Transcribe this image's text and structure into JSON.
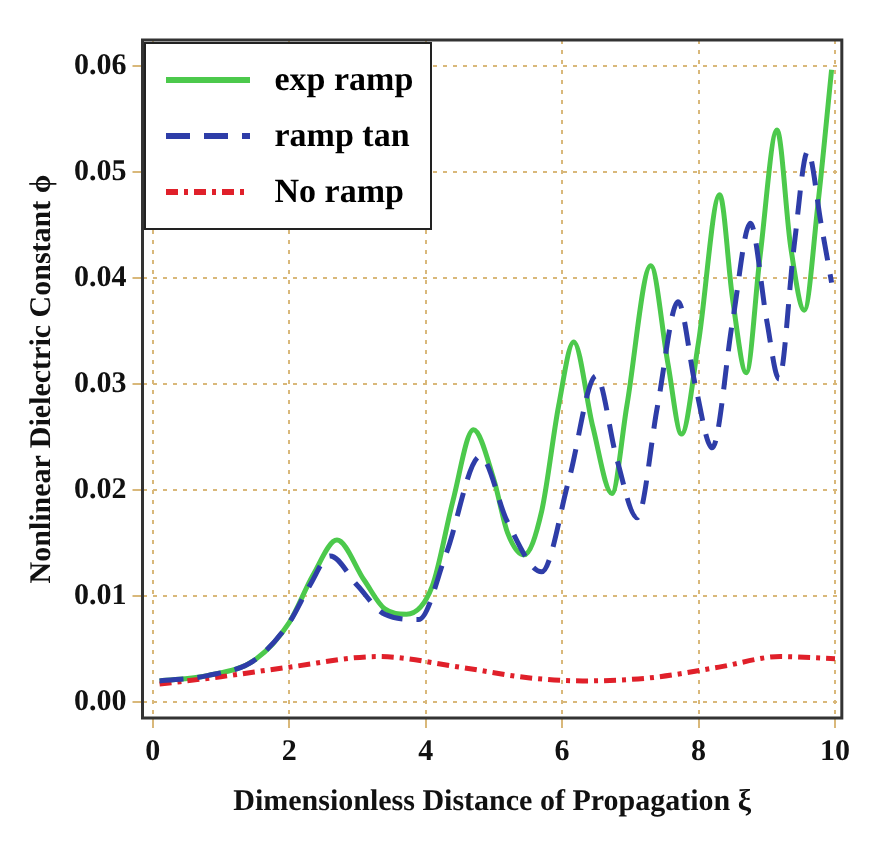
{
  "chart_data": {
    "type": "line",
    "xlabel": "Dimensionless Distance of Propagation ξ",
    "ylabel": "Nonlinear Dielectric Constant ϕ",
    "xlim": [
      -0.15,
      10.1
    ],
    "ylim": [
      -0.0015,
      0.0625
    ],
    "xticks": [
      0,
      2,
      4,
      6,
      8,
      10
    ],
    "yticks": [
      {
        "value": 0,
        "label": "0.00"
      },
      {
        "value": 0.01,
        "label": "0.01"
      },
      {
        "value": 0.02,
        "label": "0.02"
      },
      {
        "value": 0.03,
        "label": "0.03"
      },
      {
        "value": 0.04,
        "label": "0.04"
      },
      {
        "value": 0.05,
        "label": "0.05"
      },
      {
        "value": 0.06,
        "label": "0.06"
      }
    ],
    "grid": true,
    "legend": "top left",
    "marker": "none",
    "series": [
      {
        "name": "exp ramp",
        "color": "#4cc94c",
        "line_style": "solid",
        "x": [
          0.1,
          0.8,
          1.5,
          2.0,
          2.35,
          2.7,
          3.1,
          3.4,
          3.72,
          4.1,
          4.4,
          4.7,
          5.0,
          5.2,
          5.44,
          5.7,
          5.95,
          6.17,
          6.45,
          6.73,
          6.95,
          7.3,
          7.55,
          7.75,
          8.0,
          8.31,
          8.5,
          8.7,
          8.9,
          9.15,
          9.35,
          9.55,
          9.75,
          9.95
        ],
        "values": [
          0.002,
          0.0025,
          0.004,
          0.0075,
          0.012,
          0.0153,
          0.0115,
          0.0088,
          0.0083,
          0.011,
          0.019,
          0.0257,
          0.021,
          0.016,
          0.0139,
          0.018,
          0.028,
          0.034,
          0.026,
          0.0197,
          0.028,
          0.0412,
          0.032,
          0.0253,
          0.034,
          0.0479,
          0.038,
          0.0311,
          0.042,
          0.054,
          0.043,
          0.037,
          0.047,
          0.0597
        ]
      },
      {
        "name": "ramp tan",
        "color": "#2e3da8",
        "line_style": "dashed",
        "x": [
          0.1,
          0.8,
          1.5,
          2.0,
          2.3,
          2.6,
          3.0,
          3.4,
          3.9,
          4.3,
          4.8,
          5.2,
          5.7,
          6.1,
          6.5,
          6.8,
          7.1,
          7.4,
          7.7,
          7.95,
          8.2,
          8.5,
          8.76,
          9.0,
          9.18,
          9.4,
          9.6,
          9.8,
          9.95
        ],
        "values": [
          0.002,
          0.0025,
          0.004,
          0.0075,
          0.011,
          0.0138,
          0.011,
          0.0083,
          0.0078,
          0.014,
          0.0232,
          0.017,
          0.0123,
          0.021,
          0.0308,
          0.023,
          0.0174,
          0.028,
          0.0378,
          0.03,
          0.024,
          0.036,
          0.0452,
          0.036,
          0.0305,
          0.043,
          0.052,
          0.045,
          0.0396
        ]
      },
      {
        "name": "No ramp",
        "color": "#e0202a",
        "line_style": "dashdot",
        "x": [
          0.1,
          1,
          2,
          3.3,
          4.5,
          5.5,
          6.3,
          7.3,
          8.3,
          9.2,
          10
        ],
        "values": [
          0.0017,
          0.0024,
          0.0033,
          0.0043,
          0.0033,
          0.0023,
          0.002,
          0.0023,
          0.0033,
          0.0043,
          0.0041
        ]
      }
    ]
  }
}
